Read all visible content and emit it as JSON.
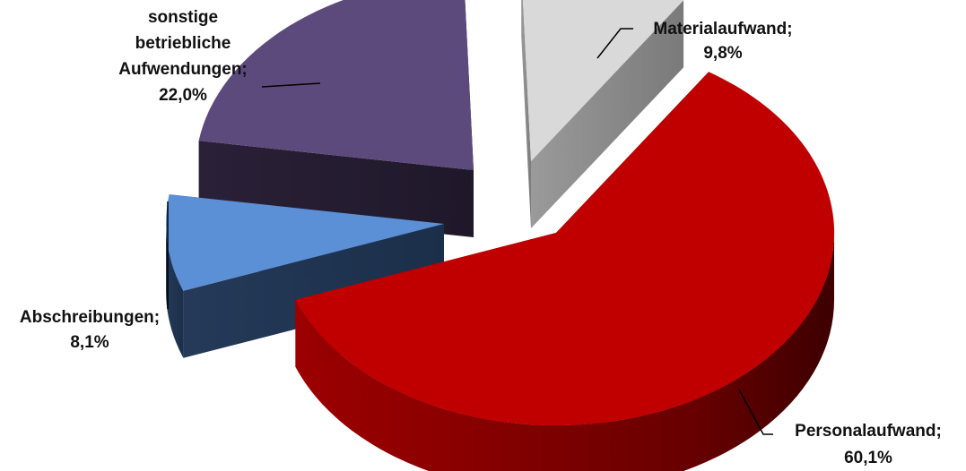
{
  "chart_data": {
    "type": "pie",
    "style": "3d-exploded",
    "legend": "none",
    "slices": [
      {
        "label_lines": [
          "Materialaufwand;",
          "9,8%"
        ],
        "value": 9.8,
        "color": "#d9d9d9"
      },
      {
        "label_lines": [
          "Personalaufwand;",
          "60,1%"
        ],
        "value": 60.1,
        "color": "#c00000"
      },
      {
        "label_lines": [
          "Abschreibungen;",
          "8,1%"
        ],
        "value": 8.1,
        "color": "#5b8fd6"
      },
      {
        "label_lines": [
          "sonstige",
          "betriebliche",
          "Aufwendungen;",
          "22,0%"
        ],
        "value": 22.0,
        "color": "#5d4a7d"
      }
    ]
  }
}
